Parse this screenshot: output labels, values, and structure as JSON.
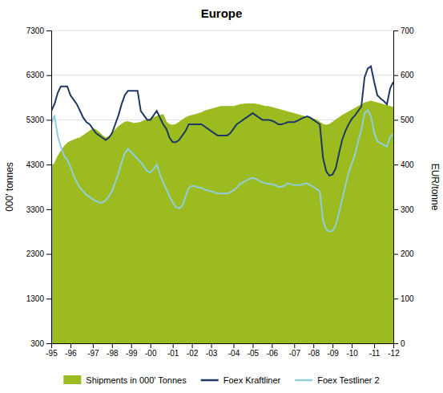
{
  "chart_data": {
    "type": "line",
    "title": "Europe",
    "y_label": "000' tonnes",
    "y2_label": "EUR/tonne",
    "categories": [
      "-95",
      null,
      null,
      null,
      null,
      null,
      "-96",
      null,
      null,
      null,
      null,
      null,
      null,
      "-97",
      null,
      null,
      null,
      null,
      null,
      "-98",
      null,
      null,
      null,
      null,
      null,
      "-99",
      null,
      null,
      null,
      null,
      null,
      "-00",
      null,
      null,
      null,
      null,
      null,
      null,
      "-01",
      null,
      null,
      null,
      null,
      null,
      "-02",
      null,
      null,
      null,
      null,
      null,
      "-03",
      null,
      null,
      null,
      null,
      null,
      null,
      "-04",
      null,
      null,
      null,
      null,
      null,
      "-05",
      null,
      null,
      null,
      null,
      null,
      "-06",
      null,
      null,
      null,
      null,
      null,
      null,
      "-07",
      null,
      null,
      null,
      null,
      null,
      "-08",
      null,
      null,
      null,
      null,
      null,
      "-09",
      null,
      null,
      null,
      null,
      null,
      "-10",
      null,
      null,
      null,
      null,
      null,
      null,
      "-11",
      null,
      null,
      null,
      null,
      null,
      "-12"
    ],
    "ylim": [
      300,
      7300
    ],
    "yticks": [
      300,
      1300,
      2300,
      3300,
      4300,
      5300,
      6300,
      7300
    ],
    "y2lim": [
      0,
      700
    ],
    "y2ticks": [
      0,
      100,
      200,
      300,
      400,
      500,
      600,
      700
    ],
    "grid": true,
    "legend": "bottom",
    "series": [
      {
        "name": "Shipments in 000' Tonnes",
        "type": "area",
        "color": "#9BBB20",
        "values": [
          4280,
          4320,
          4480,
          4600,
          4700,
          4780,
          4820,
          4850,
          4880,
          4900,
          4950,
          5000,
          5050,
          5100,
          5080,
          5020,
          4950,
          4900,
          4920,
          5000,
          5080,
          5150,
          5200,
          5250,
          5260,
          5240,
          5220,
          5230,
          5250,
          5280,
          5300,
          5320,
          5350,
          5380,
          5400,
          5420,
          5250,
          5200,
          5180,
          5200,
          5250,
          5300,
          5350,
          5380,
          5400,
          5420,
          5440,
          5460,
          5500,
          5520,
          5540,
          5560,
          5580,
          5600,
          5600,
          5600,
          5600,
          5600,
          5620,
          5640,
          5650,
          5660,
          5660,
          5660,
          5650,
          5640,
          5620,
          5600,
          5600,
          5580,
          5560,
          5540,
          5520,
          5500,
          5480,
          5460,
          5440,
          5420,
          5400,
          5380,
          5360,
          5340,
          5320,
          5300,
          5250,
          5200,
          5180,
          5200,
          5250,
          5300,
          5350,
          5400,
          5440,
          5480,
          5520,
          5560,
          5600,
          5640,
          5680,
          5700,
          5720,
          5700,
          5680,
          5660,
          5640,
          5620,
          5600,
          5580
        ]
      },
      {
        "name": "Foex Kraftliner",
        "type": "line",
        "axis": "y2",
        "color": "#1F3864",
        "values": [
          520,
          535,
          560,
          575,
          575,
          575,
          555,
          545,
          535,
          520,
          505,
          495,
          490,
          480,
          470,
          465,
          460,
          455,
          460,
          470,
          490,
          510,
          535,
          555,
          565,
          565,
          565,
          565,
          520,
          510,
          500,
          500,
          510,
          520,
          505,
          490,
          480,
          460,
          450,
          450,
          455,
          465,
          475,
          490,
          490,
          490,
          490,
          490,
          485,
          480,
          475,
          470,
          465,
          465,
          465,
          465,
          470,
          480,
          490,
          495,
          500,
          505,
          510,
          515,
          510,
          505,
          500,
          500,
          500,
          498,
          495,
          490,
          490,
          492,
          495,
          495,
          495,
          498,
          502,
          505,
          508,
          505,
          500,
          495,
          490,
          415,
          385,
          375,
          378,
          392,
          425,
          455,
          475,
          490,
          502,
          510,
          520,
          530,
          595,
          615,
          620,
          585,
          555,
          548,
          542,
          535,
          570,
          585
        ]
      },
      {
        "name": "Foex Testliner 2",
        "type": "line",
        "axis": "y2",
        "color": "#92CDDC",
        "values": [
          490,
          510,
          465,
          440,
          420,
          410,
          395,
          375,
          360,
          348,
          340,
          332,
          328,
          322,
          318,
          315,
          315,
          320,
          328,
          340,
          360,
          380,
          405,
          425,
          435,
          428,
          420,
          412,
          405,
          395,
          385,
          382,
          390,
          400,
          378,
          360,
          345,
          328,
          315,
          305,
          302,
          308,
          328,
          348,
          352,
          352,
          348,
          348,
          344,
          342,
          340,
          338,
          335,
          335,
          335,
          335,
          338,
          342,
          348,
          356,
          360,
          364,
          368,
          370,
          368,
          364,
          360,
          358,
          357,
          356,
          354,
          350,
          350,
          353,
          358,
          356,
          354,
          354,
          354,
          357,
          358,
          354,
          350,
          345,
          340,
          275,
          255,
          250,
          252,
          264,
          292,
          322,
          352,
          382,
          402,
          422,
          452,
          478,
          515,
          522,
          508,
          472,
          452,
          448,
          444,
          440,
          462,
          468
        ]
      }
    ]
  }
}
